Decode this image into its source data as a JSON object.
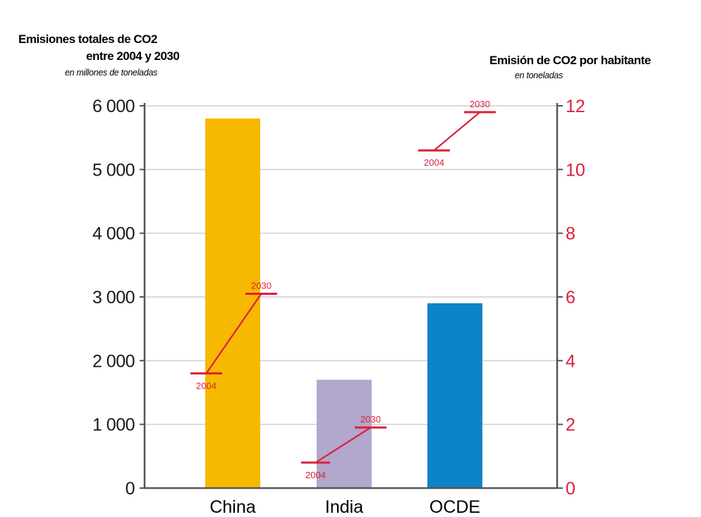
{
  "left_title": {
    "line1": "Emisiones totales de CO2",
    "line2": "entre 2004 y 2030",
    "units": "en millones de toneladas"
  },
  "right_title": {
    "line1": "Emisión de CO2 por habitante",
    "units": "en toneladas"
  },
  "colors": {
    "china": "#f7b800",
    "india": "#b2a7cc",
    "ocde": "#0b84c8",
    "per_capita": "#dc1f3a",
    "grid": "#cfcfcf",
    "axis": "#555555"
  },
  "chart_data": {
    "type": "bar",
    "categories": [
      "China",
      "India",
      "OCDE"
    ],
    "left_axis": {
      "ylim": [
        0,
        6000
      ],
      "ticks": [
        0,
        1000,
        2000,
        3000,
        4000,
        5000,
        6000
      ],
      "tick_labels": [
        "0",
        "1 000",
        "2 000",
        "3 000",
        "4 000",
        "5 000",
        "6 000"
      ]
    },
    "right_axis": {
      "ylim": [
        0,
        12
      ],
      "ticks": [
        0,
        2,
        4,
        6,
        8,
        10,
        12
      ],
      "tick_labels": [
        "0",
        "2",
        "4",
        "6",
        "8",
        "10",
        "12"
      ]
    },
    "bar_values": [
      5800,
      1700,
      2900
    ],
    "per_capita": {
      "years": [
        "2004",
        "2030"
      ],
      "values": [
        [
          3.6,
          6.1
        ],
        [
          0.8,
          1.9
        ],
        [
          10.6,
          11.8
        ]
      ]
    },
    "grid": true
  }
}
